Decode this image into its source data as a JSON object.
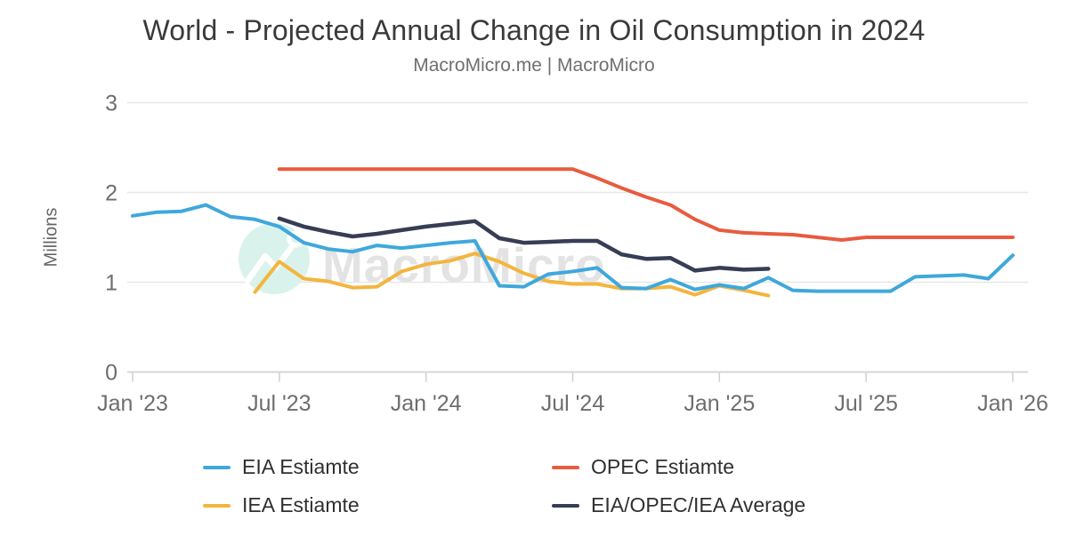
{
  "page": {
    "title": "World - Projected Annual Change in Oil Consumption in 2024",
    "subtitle": "MacroMicro.me | MacroMicro"
  },
  "watermark": {
    "text": "MacroMicro",
    "circle_color": "#d9f3ec",
    "icon_color": "#ffffff",
    "text_color": "#e3e3e3"
  },
  "axis_colors": {
    "grid_line": "#e7e7e7",
    "zero_line": "#d6d6d6",
    "tick_mark": "#cfcfcf",
    "label_text": "#6e6e6e"
  },
  "chart_data": {
    "type": "line",
    "title": "World - Projected Annual Change in Oil Consumption in 2024",
    "subtitle": "MacroMicro.me | MacroMicro",
    "xlabel": "",
    "ylabel": "Millions",
    "ylim": [
      0,
      3
    ],
    "yticks": [
      0,
      1,
      2,
      3
    ],
    "grid": true,
    "legend_position": "bottom",
    "x_unit": "months since Jan 2023",
    "xticks": {
      "labels": [
        "Jan '23",
        "Jul '23",
        "Jan '24",
        "Jul '24",
        "Jan '25",
        "Jul '25",
        "Jan '26"
      ],
      "months": [
        0,
        6,
        12,
        18,
        24,
        30,
        36
      ]
    },
    "series": [
      {
        "name": "EIA Estiamte",
        "color": "#3fa8db",
        "start_month": 0,
        "values": [
          1.74,
          1.78,
          1.79,
          1.86,
          1.73,
          1.7,
          1.62,
          1.44,
          1.37,
          1.34,
          1.41,
          1.38,
          1.41,
          1.44,
          1.46,
          0.96,
          0.95,
          1.09,
          1.12,
          1.16,
          0.94,
          0.93,
          1.03,
          0.92,
          0.97,
          0.93,
          1.05,
          0.91,
          0.9,
          0.9,
          0.9,
          0.9,
          1.06,
          1.07,
          1.08,
          1.04,
          1.3
        ]
      },
      {
        "name": "OPEC Estiamte",
        "color": "#e85b3f",
        "start_month": 6,
        "values": [
          2.26,
          2.26,
          2.26,
          2.26,
          2.26,
          2.26,
          2.26,
          2.26,
          2.26,
          2.26,
          2.26,
          2.26,
          2.26,
          2.16,
          2.05,
          1.95,
          1.86,
          1.7,
          1.58,
          1.55,
          1.54,
          1.53,
          1.5,
          1.47,
          1.5,
          1.5,
          1.5,
          1.5,
          1.5,
          1.5,
          1.5
        ]
      },
      {
        "name": "IEA Estiamte",
        "color": "#f4b53e",
        "start_month": 5,
        "values": [
          0.89,
          1.23,
          1.04,
          1.01,
          0.94,
          0.95,
          1.12,
          1.2,
          1.24,
          1.32,
          1.23,
          1.1,
          1.01,
          0.98,
          0.98,
          0.93,
          0.93,
          0.95,
          0.86,
          0.96,
          0.91,
          0.85
        ]
      },
      {
        "name": "EIA/OPEC/IEA Average",
        "color": "#363d54",
        "start_month": 6,
        "values": [
          1.71,
          1.62,
          1.56,
          1.51,
          1.54,
          1.58,
          1.62,
          1.65,
          1.68,
          1.49,
          1.44,
          1.45,
          1.46,
          1.46,
          1.31,
          1.26,
          1.27,
          1.13,
          1.16,
          1.14,
          1.15
        ]
      }
    ]
  }
}
